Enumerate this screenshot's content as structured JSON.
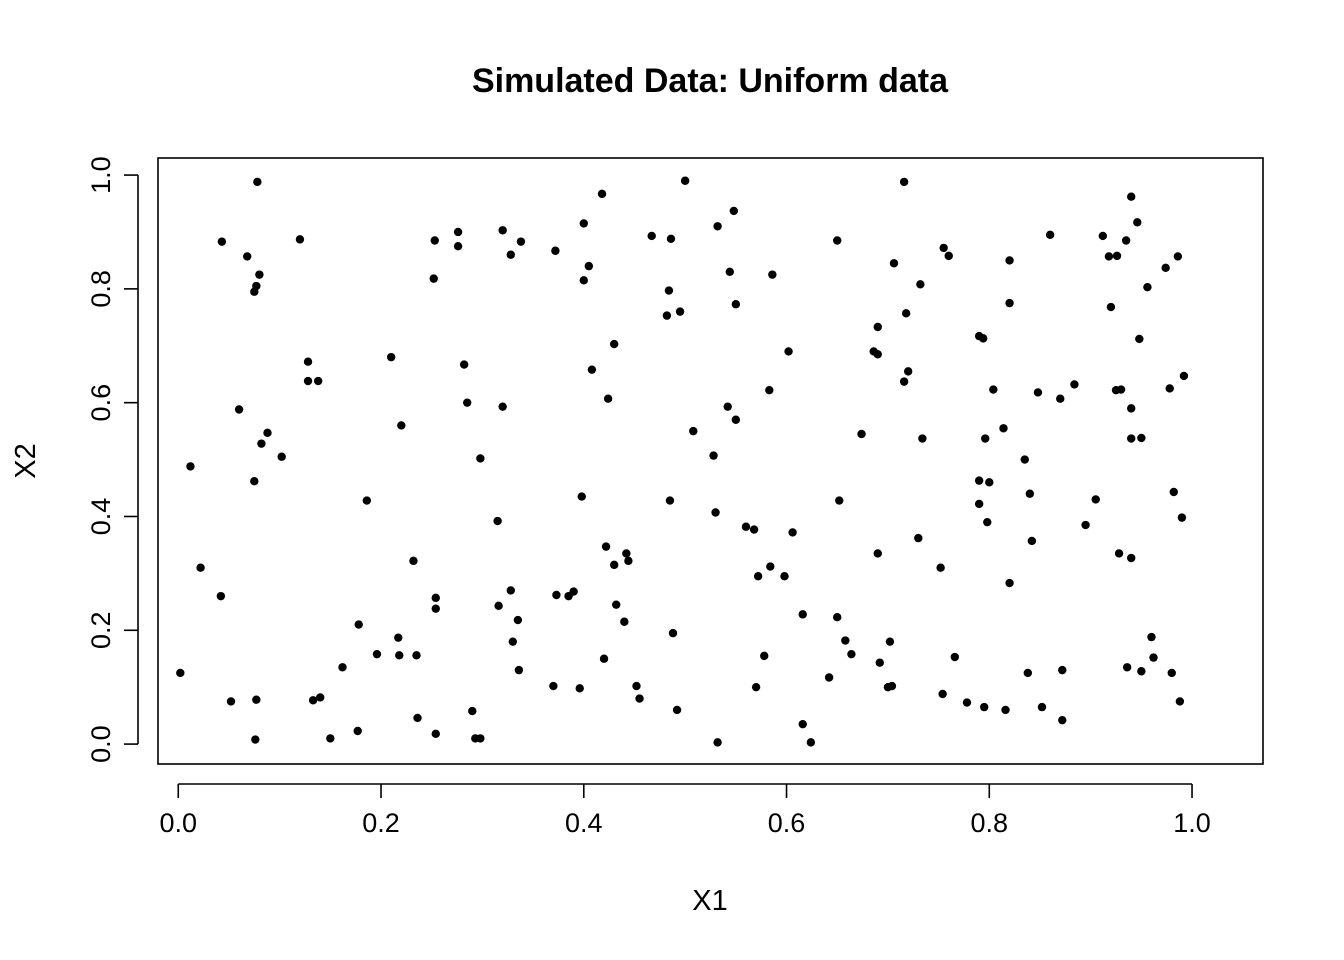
{
  "chart_data": {
    "type": "scatter",
    "title": "Simulated Data: Uniform data",
    "xlabel": "X1",
    "ylabel": "X2",
    "xlim": [
      -0.02,
      1.07
    ],
    "ylim": [
      -0.035,
      1.03
    ],
    "x_ticks": [
      0.0,
      0.2,
      0.4,
      0.6,
      0.8,
      1.0
    ],
    "x_tick_labels": [
      "0.0",
      "0.2",
      "0.4",
      "0.6",
      "0.8",
      "1.0"
    ],
    "y_ticks": [
      0.0,
      0.2,
      0.4,
      0.6,
      0.8,
      1.0
    ],
    "y_tick_labels": [
      "0.0",
      "0.2",
      "0.4",
      "0.6",
      "0.8",
      "1.0"
    ],
    "grid": false,
    "legend": "none",
    "point_color": "#000000",
    "points": [
      [
        0.002,
        0.125
      ],
      [
        0.012,
        0.488
      ],
      [
        0.022,
        0.31
      ],
      [
        0.042,
        0.26
      ],
      [
        0.043,
        0.883
      ],
      [
        0.052,
        0.075
      ],
      [
        0.06,
        0.588
      ],
      [
        0.068,
        0.857
      ],
      [
        0.075,
        0.462
      ],
      [
        0.076,
        0.008
      ],
      [
        0.077,
        0.078
      ],
      [
        0.075,
        0.795
      ],
      [
        0.077,
        0.805
      ],
      [
        0.078,
        0.988
      ],
      [
        0.08,
        0.825
      ],
      [
        0.082,
        0.528
      ],
      [
        0.088,
        0.547
      ],
      [
        0.102,
        0.505
      ],
      [
        0.12,
        0.887
      ],
      [
        0.128,
        0.638
      ],
      [
        0.128,
        0.672
      ],
      [
        0.133,
        0.077
      ],
      [
        0.138,
        0.638
      ],
      [
        0.14,
        0.082
      ],
      [
        0.15,
        0.01
      ],
      [
        0.162,
        0.135
      ],
      [
        0.177,
        0.023
      ],
      [
        0.178,
        0.21
      ],
      [
        0.186,
        0.428
      ],
      [
        0.196,
        0.158
      ],
      [
        0.21,
        0.68
      ],
      [
        0.217,
        0.187
      ],
      [
        0.218,
        0.156
      ],
      [
        0.22,
        0.56
      ],
      [
        0.232,
        0.322
      ],
      [
        0.235,
        0.156
      ],
      [
        0.236,
        0.046
      ],
      [
        0.252,
        0.818
      ],
      [
        0.253,
        0.885
      ],
      [
        0.254,
        0.257
      ],
      [
        0.254,
        0.238
      ],
      [
        0.254,
        0.018
      ],
      [
        0.276,
        0.875
      ],
      [
        0.276,
        0.9
      ],
      [
        0.282,
        0.667
      ],
      [
        0.285,
        0.6
      ],
      [
        0.29,
        0.058
      ],
      [
        0.293,
        0.01
      ],
      [
        0.298,
        0.01
      ],
      [
        0.298,
        0.502
      ],
      [
        0.315,
        0.392
      ],
      [
        0.316,
        0.243
      ],
      [
        0.32,
        0.903
      ],
      [
        0.32,
        0.593
      ],
      [
        0.328,
        0.86
      ],
      [
        0.328,
        0.27
      ],
      [
        0.33,
        0.18
      ],
      [
        0.335,
        0.218
      ],
      [
        0.336,
        0.13
      ],
      [
        0.338,
        0.883
      ],
      [
        0.37,
        0.102
      ],
      [
        0.372,
        0.867
      ],
      [
        0.373,
        0.262
      ],
      [
        0.385,
        0.26
      ],
      [
        0.39,
        0.268
      ],
      [
        0.396,
        0.098
      ],
      [
        0.398,
        0.435
      ],
      [
        0.4,
        0.815
      ],
      [
        0.4,
        0.915
      ],
      [
        0.405,
        0.84
      ],
      [
        0.408,
        0.658
      ],
      [
        0.418,
        0.967
      ],
      [
        0.42,
        0.15
      ],
      [
        0.422,
        0.347
      ],
      [
        0.424,
        0.607
      ],
      [
        0.43,
        0.315
      ],
      [
        0.43,
        0.703
      ],
      [
        0.432,
        0.245
      ],
      [
        0.44,
        0.215
      ],
      [
        0.442,
        0.335
      ],
      [
        0.444,
        0.322
      ],
      [
        0.452,
        0.102
      ],
      [
        0.455,
        0.08
      ],
      [
        0.467,
        0.893
      ],
      [
        0.482,
        0.753
      ],
      [
        0.484,
        0.797
      ],
      [
        0.485,
        0.428
      ],
      [
        0.486,
        0.888
      ],
      [
        0.488,
        0.195
      ],
      [
        0.492,
        0.06
      ],
      [
        0.495,
        0.76
      ],
      [
        0.5,
        0.99
      ],
      [
        0.508,
        0.55
      ],
      [
        0.528,
        0.507
      ],
      [
        0.53,
        0.407
      ],
      [
        0.532,
        0.003
      ],
      [
        0.532,
        0.91
      ],
      [
        0.542,
        0.593
      ],
      [
        0.544,
        0.83
      ],
      [
        0.548,
        0.937
      ],
      [
        0.55,
        0.773
      ],
      [
        0.55,
        0.57
      ],
      [
        0.56,
        0.382
      ],
      [
        0.568,
        0.377
      ],
      [
        0.57,
        0.1
      ],
      [
        0.572,
        0.295
      ],
      [
        0.578,
        0.155
      ],
      [
        0.583,
        0.622
      ],
      [
        0.584,
        0.312
      ],
      [
        0.586,
        0.825
      ],
      [
        0.598,
        0.295
      ],
      [
        0.602,
        0.69
      ],
      [
        0.606,
        0.372
      ],
      [
        0.616,
        0.228
      ],
      [
        0.616,
        0.035
      ],
      [
        0.624,
        0.003
      ],
      [
        0.642,
        0.117
      ],
      [
        0.65,
        0.885
      ],
      [
        0.65,
        0.223
      ],
      [
        0.652,
        0.428
      ],
      [
        0.658,
        0.182
      ],
      [
        0.664,
        0.158
      ],
      [
        0.674,
        0.545
      ],
      [
        0.686,
        0.69
      ],
      [
        0.69,
        0.733
      ],
      [
        0.69,
        0.685
      ],
      [
        0.69,
        0.335
      ],
      [
        0.692,
        0.143
      ],
      [
        0.7,
        0.1
      ],
      [
        0.702,
        0.18
      ],
      [
        0.704,
        0.102
      ],
      [
        0.706,
        0.845
      ],
      [
        0.716,
        0.988
      ],
      [
        0.716,
        0.637
      ],
      [
        0.718,
        0.757
      ],
      [
        0.72,
        0.655
      ],
      [
        0.73,
        0.362
      ],
      [
        0.732,
        0.808
      ],
      [
        0.734,
        0.537
      ],
      [
        0.752,
        0.31
      ],
      [
        0.754,
        0.088
      ],
      [
        0.755,
        0.872
      ],
      [
        0.76,
        0.858
      ],
      [
        0.766,
        0.153
      ],
      [
        0.778,
        0.073
      ],
      [
        0.79,
        0.463
      ],
      [
        0.79,
        0.422
      ],
      [
        0.79,
        0.717
      ],
      [
        0.794,
        0.713
      ],
      [
        0.795,
        0.065
      ],
      [
        0.796,
        0.537
      ],
      [
        0.798,
        0.39
      ],
      [
        0.8,
        0.46
      ],
      [
        0.804,
        0.623
      ],
      [
        0.814,
        0.555
      ],
      [
        0.816,
        0.06
      ],
      [
        0.82,
        0.775
      ],
      [
        0.82,
        0.85
      ],
      [
        0.82,
        0.283
      ],
      [
        0.835,
        0.5
      ],
      [
        0.838,
        0.125
      ],
      [
        0.84,
        0.44
      ],
      [
        0.842,
        0.357
      ],
      [
        0.848,
        0.618
      ],
      [
        0.852,
        0.065
      ],
      [
        0.86,
        0.895
      ],
      [
        0.87,
        0.607
      ],
      [
        0.872,
        0.13
      ],
      [
        0.872,
        0.042
      ],
      [
        0.884,
        0.632
      ],
      [
        0.895,
        0.385
      ],
      [
        0.905,
        0.43
      ],
      [
        0.912,
        0.893
      ],
      [
        0.918,
        0.857
      ],
      [
        0.92,
        0.768
      ],
      [
        0.925,
        0.622
      ],
      [
        0.926,
        0.858
      ],
      [
        0.928,
        0.335
      ],
      [
        0.93,
        0.623
      ],
      [
        0.935,
        0.885
      ],
      [
        0.936,
        0.135
      ],
      [
        0.94,
        0.962
      ],
      [
        0.94,
        0.59
      ],
      [
        0.94,
        0.537
      ],
      [
        0.94,
        0.327
      ],
      [
        0.946,
        0.917
      ],
      [
        0.948,
        0.712
      ],
      [
        0.95,
        0.128
      ],
      [
        0.95,
        0.538
      ],
      [
        0.956,
        0.803
      ],
      [
        0.96,
        0.188
      ],
      [
        0.962,
        0.152
      ],
      [
        0.974,
        0.837
      ],
      [
        0.978,
        0.625
      ],
      [
        0.98,
        0.125
      ],
      [
        0.982,
        0.443
      ],
      [
        0.986,
        0.857
      ],
      [
        0.988,
        0.075
      ],
      [
        0.99,
        0.398
      ],
      [
        0.992,
        0.647
      ]
    ]
  }
}
